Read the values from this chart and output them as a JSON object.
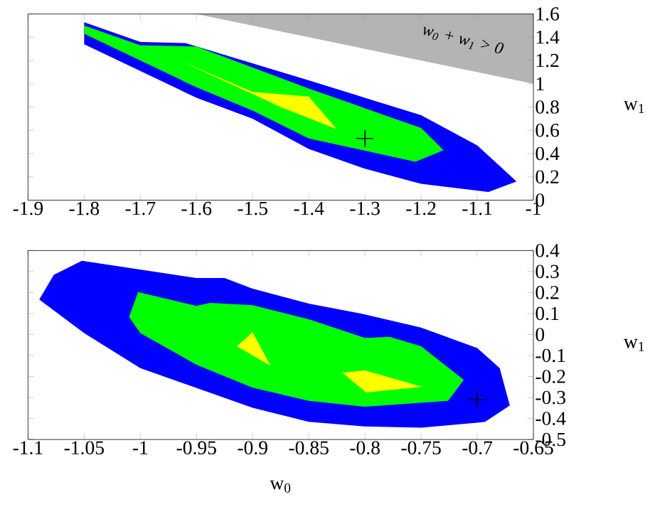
{
  "chart_data": [
    {
      "type": "area",
      "xlim": [
        -1.9,
        -1
      ],
      "ylim": [
        0,
        1.6
      ],
      "xticks": [
        -1.9,
        -1.8,
        -1.7,
        -1.6,
        -1.5,
        -1.4,
        -1.3,
        -1.2,
        -1.1,
        -1
      ],
      "yticks": [
        0,
        0.2,
        0.4,
        0.6,
        0.8,
        1,
        1.2,
        1.4,
        1.6
      ],
      "ylabel": "w$_{1}$",
      "grid": false,
      "annotations": [
        "w$_{0}$ + w$_{1}$ > 0"
      ],
      "series": [
        {
          "color": "#0000ff",
          "x": [
            -1.8,
            -1.7,
            -1.62,
            -1.4,
            -1.2,
            -1.1,
            -1.03,
            -1.08,
            -1.2,
            -1.3,
            -1.4,
            -1.5,
            -1.6,
            -1.8
          ],
          "values": [
            1.53,
            1.36,
            1.35,
            1.03,
            0.73,
            0.47,
            0.16,
            0.07,
            0.14,
            0.27,
            0.44,
            0.7,
            0.88,
            1.34
          ]
        },
        {
          "color": "#00ff00",
          "x": [
            -1.8,
            -1.7,
            -1.6,
            -1.4,
            -1.2,
            -1.16,
            -1.21,
            -1.4,
            -1.5,
            -1.6,
            -1.8
          ],
          "values": [
            1.5,
            1.33,
            1.32,
            0.96,
            0.62,
            0.43,
            0.33,
            0.53,
            0.77,
            0.97,
            1.43
          ]
        },
        {
          "color": "#ffff00",
          "x": [
            -1.63,
            -1.5,
            -1.4,
            -1.35,
            -1.45
          ],
          "values": [
            1.2,
            0.93,
            0.89,
            0.61,
            0.8
          ]
        },
        {
          "color": "#b4b4b4",
          "x": [
            -1.6,
            -1,
            -1
          ],
          "values": [
            1.6,
            1,
            1.6
          ]
        },
        {
          "type": "scatter",
          "color": "#000000",
          "marker": "cross",
          "x": [
            -1.3
          ],
          "values": [
            0.53
          ]
        }
      ]
    },
    {
      "type": "area",
      "xlim": [
        -1.1,
        -0.65
      ],
      "ylim": [
        -0.5,
        0.4
      ],
      "xticks": [
        -1.1,
        -1.05,
        -1,
        -0.95,
        -0.9,
        -0.85,
        -0.8,
        -0.75,
        -0.7,
        -0.65
      ],
      "yticks": [
        -0.5,
        -0.4,
        -0.3,
        -0.2,
        -0.1,
        0,
        0.1,
        0.2,
        0.3,
        0.4
      ],
      "xlabel": "w$_{0}$",
      "ylabel": "w$_{1}$",
      "grid": false,
      "series": [
        {
          "color": "#0000ff",
          "x": [
            -1.09,
            -1.077,
            -1.052,
            -0.95,
            -0.925,
            -0.9,
            -0.85,
            -0.8,
            -0.75,
            -0.7,
            -0.68,
            -0.671,
            -0.693,
            -0.7,
            -0.75,
            -0.8,
            -0.85,
            -0.9,
            -1.0,
            -1.05
          ],
          "values": [
            0.167,
            0.284,
            0.351,
            0.269,
            0.269,
            0.218,
            0.147,
            0.096,
            0.033,
            -0.064,
            -0.16,
            -0.338,
            -0.416,
            -0.42,
            -0.444,
            -0.438,
            -0.416,
            -0.349,
            -0.16,
            0.007
          ]
        },
        {
          "color": "#00ff00",
          "x": [
            -1.002,
            -0.95,
            -0.938,
            -0.9,
            -0.85,
            -0.8,
            -0.778,
            -0.75,
            -0.712,
            -0.726,
            -0.8,
            -0.85,
            -0.9,
            -0.95,
            -1.0,
            -1.01
          ],
          "values": [
            0.202,
            0.136,
            0.151,
            0.14,
            0.073,
            -0.016,
            -0.011,
            -0.056,
            -0.216,
            -0.316,
            -0.344,
            -0.316,
            -0.253,
            -0.144,
            0.007,
            0.084
          ]
        },
        {
          "color": "#ffff00",
          "x": [
            -0.9,
            -0.914,
            -0.884
          ],
          "values": [
            0.011,
            -0.056,
            -0.149
          ]
        },
        {
          "color": "#ffff00",
          "x": [
            -0.82,
            -0.8,
            -0.749,
            -0.799
          ],
          "values": [
            -0.182,
            -0.171,
            -0.249,
            -0.276
          ]
        },
        {
          "type": "scatter",
          "color": "#000000",
          "marker": "cross",
          "x": [
            -0.7
          ],
          "values": [
            -0.31
          ]
        }
      ]
    }
  ]
}
